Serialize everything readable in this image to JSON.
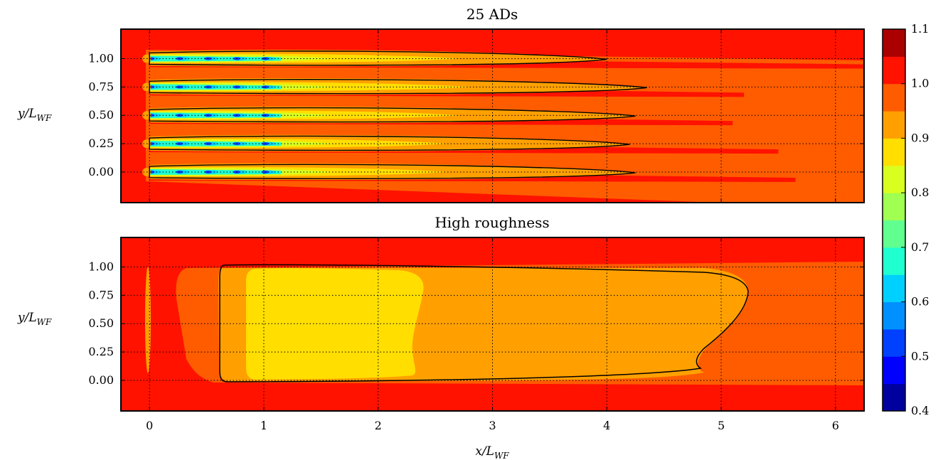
{
  "chart_data": [
    {
      "type": "heatmap",
      "title": "25 ADs",
      "xlabel": "",
      "ylabel": "y/L_WF",
      "xlim": [
        -0.25,
        6.25
      ],
      "ylim": [
        -0.27,
        1.26
      ],
      "x_ticks": [
        0,
        1,
        2,
        3,
        4,
        5,
        6
      ],
      "y_ticks": [
        0.0,
        0.25,
        0.5,
        0.75,
        1.0
      ],
      "y_tick_labels": [
        "0.00",
        "0.25",
        "0.50",
        "0.75",
        "1.00"
      ],
      "grid": true,
      "background_level": 1.0,
      "rows": [
        {
          "y": 1.0,
          "wake_end_x": 2.7,
          "contour_end_x": 4.0,
          "streak_end_x": 6.25
        },
        {
          "y": 0.75,
          "wake_end_x": 2.8,
          "contour_end_x": 4.35,
          "streak_end_x": 5.2
        },
        {
          "y": 0.5,
          "wake_end_x": 2.7,
          "contour_end_x": 4.25,
          "streak_end_x": 5.1
        },
        {
          "y": 0.25,
          "wake_end_x": 2.6,
          "contour_end_x": 4.2,
          "streak_end_x": 5.5
        },
        {
          "y": 0.0,
          "wake_end_x": 2.6,
          "contour_end_x": 4.25,
          "streak_end_x": 5.65
        }
      ],
      "turbine_x": [
        0,
        0.25,
        0.5,
        0.75,
        1.0
      ]
    },
    {
      "type": "heatmap",
      "title": "High roughness",
      "xlabel": "x/L_WF",
      "ylabel": "y/L_WF",
      "xlim": [
        -0.25,
        6.25
      ],
      "ylim": [
        -0.27,
        1.26
      ],
      "x_ticks": [
        0,
        1,
        2,
        3,
        4,
        5,
        6
      ],
      "y_ticks": [
        0.0,
        0.25,
        0.5,
        0.75,
        1.0
      ],
      "y_tick_labels": [
        "0.00",
        "0.25",
        "0.50",
        "0.75",
        "1.00"
      ],
      "grid": true,
      "background_level": 1.0,
      "band_y": [
        0.0,
        1.05
      ],
      "level_0_95_region_x": [
        0.25,
        5.2
      ],
      "level_0_9_region_x": [
        0.85,
        2.4
      ],
      "contour_0_95_x": [
        0.62,
        5.22
      ]
    }
  ],
  "colorbar": {
    "min": 0.4,
    "max": 1.1,
    "ticks": [
      "0.4",
      "0.5",
      "0.6",
      "0.7",
      "0.8",
      "0.9",
      "1.0",
      "1.1"
    ],
    "levels": [
      {
        "from": 0.4,
        "color": "#00009f"
      },
      {
        "from": 0.45,
        "color": "#0000ff"
      },
      {
        "from": 0.5,
        "color": "#0040ff"
      },
      {
        "from": 0.55,
        "color": "#0090ff"
      },
      {
        "from": 0.6,
        "color": "#00d0ff"
      },
      {
        "from": 0.65,
        "color": "#20ffd0"
      },
      {
        "from": 0.7,
        "color": "#60ff90"
      },
      {
        "from": 0.75,
        "color": "#a0ff50"
      },
      {
        "from": 0.8,
        "color": "#d8ff20"
      },
      {
        "from": 0.85,
        "color": "#ffde00"
      },
      {
        "from": 0.9,
        "color": "#ffa000"
      },
      {
        "from": 0.95,
        "color": "#ff5c00"
      },
      {
        "from": 1.0,
        "color": "#ff1200"
      },
      {
        "from": 1.05,
        "color": "#aa0000"
      }
    ]
  }
}
